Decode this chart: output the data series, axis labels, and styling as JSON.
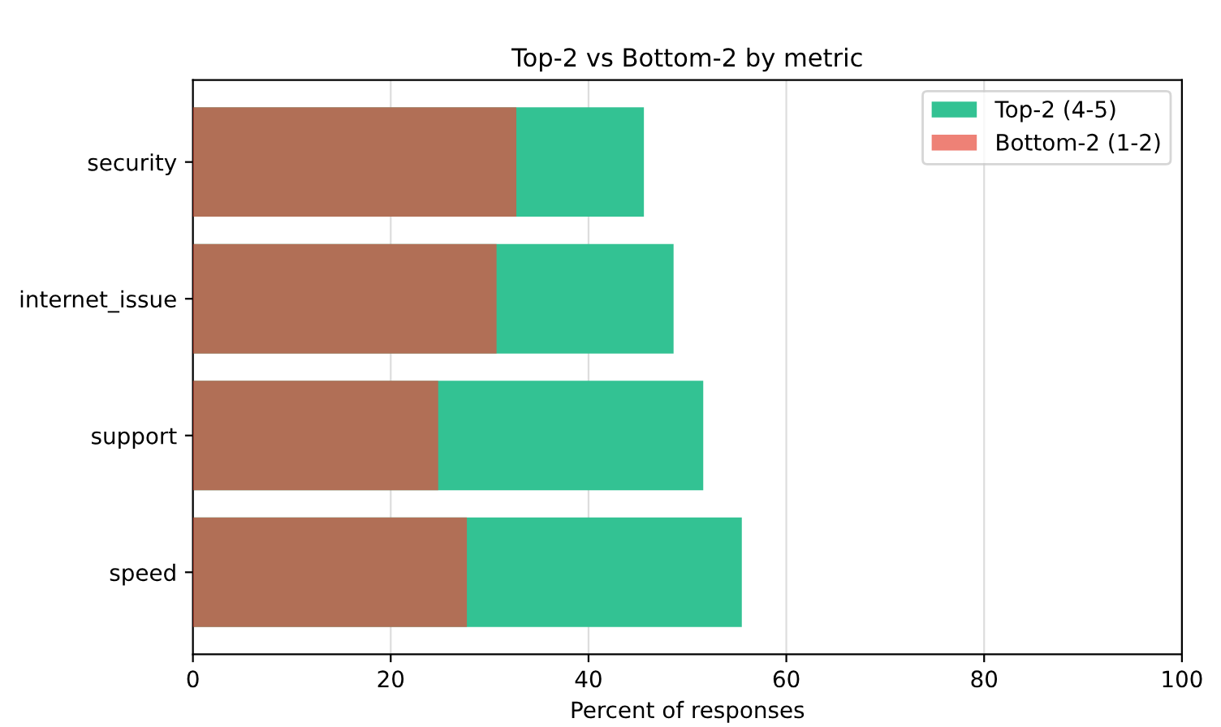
{
  "chart_data": {
    "type": "bar",
    "orientation": "horizontal",
    "title": "Top-2 vs Bottom-2 by metric",
    "xlabel": "Percent of responses",
    "categories": [
      "security",
      "internet_issue",
      "support",
      "speed"
    ],
    "series": [
      {
        "name": "Top-2 (4-5)",
        "color": "#33c293",
        "values": [
          45.6,
          48.6,
          51.6,
          55.5
        ]
      },
      {
        "name": "Bottom-2 (1-2)",
        "color": "#e74c3c",
        "values": [
          32.7,
          30.7,
          24.8,
          27.7
        ]
      }
    ],
    "xlim": [
      0,
      100
    ],
    "xticks": [
      0,
      20,
      40,
      60,
      80,
      100
    ],
    "grid": "x",
    "legend": "top right"
  }
}
